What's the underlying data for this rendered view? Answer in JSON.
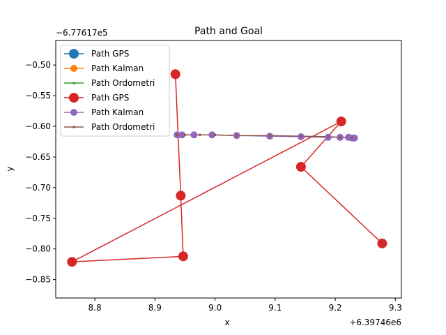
{
  "chart_data": {
    "type": "line",
    "title": "Path and Goal",
    "xlabel": "x",
    "ylabel": "y",
    "x_offset_label": "+6.39746e6",
    "y_offset_label": "−6.77617e5",
    "xlim": [
      8.735,
      9.31
    ],
    "ylim": [
      -0.88,
      -0.46
    ],
    "x_ticks": [
      8.8,
      8.9,
      9.0,
      9.1,
      9.2,
      9.3
    ],
    "x_tick_labels": [
      "8.8",
      "8.9",
      "9.0",
      "9.1",
      "9.2",
      "9.3"
    ],
    "y_ticks": [
      -0.5,
      -0.55,
      -0.6,
      -0.65,
      -0.7,
      -0.75,
      -0.8,
      -0.85
    ],
    "y_tick_labels": [
      "−0.50",
      "−0.55",
      "−0.60",
      "−0.65",
      "−0.70",
      "−0.75",
      "−0.80",
      "−0.85"
    ],
    "grid": false,
    "legend_position": "top-left",
    "series": [
      {
        "name": "Path GPS",
        "color": "#1f77b4",
        "marker": "big",
        "x": [],
        "y": []
      },
      {
        "name": "Path Kalman",
        "color": "#ff7f0e",
        "marker": "medium",
        "x": [],
        "y": []
      },
      {
        "name": "Path Ordometri",
        "color": "#2ca02c",
        "marker": "small",
        "x": [],
        "y": []
      },
      {
        "name": "Path GPS",
        "color": "#d62728",
        "marker": "big",
        "x": [
          8.934,
          8.943,
          8.947,
          8.762,
          9.21,
          9.143,
          9.278
        ],
        "y": [
          -0.515,
          -0.713,
          -0.812,
          -0.821,
          -0.592,
          -0.666,
          -0.791
        ]
      },
      {
        "name": "Path Kalman",
        "color": "#9467bd",
        "marker": "medium",
        "x": [
          8.937,
          8.945,
          8.965,
          8.995,
          9.036,
          9.091,
          9.143,
          9.188,
          9.208,
          9.222,
          9.228,
          9.232
        ],
        "y": [
          -0.614,
          -0.614,
          -0.614,
          -0.614,
          -0.615,
          -0.616,
          -0.617,
          -0.618,
          -0.618,
          -0.618,
          -0.619,
          -0.619
        ]
      },
      {
        "name": "Path Ordometri",
        "color": "#8c564b",
        "marker": "small",
        "x": [
          8.937,
          8.95,
          8.975,
          9.0,
          9.036,
          9.091,
          9.143,
          9.188,
          9.208,
          9.228
        ],
        "y": [
          -0.614,
          -0.614,
          -0.614,
          -0.614,
          -0.615,
          -0.615,
          -0.616,
          -0.617,
          -0.618,
          -0.619
        ]
      }
    ]
  }
}
